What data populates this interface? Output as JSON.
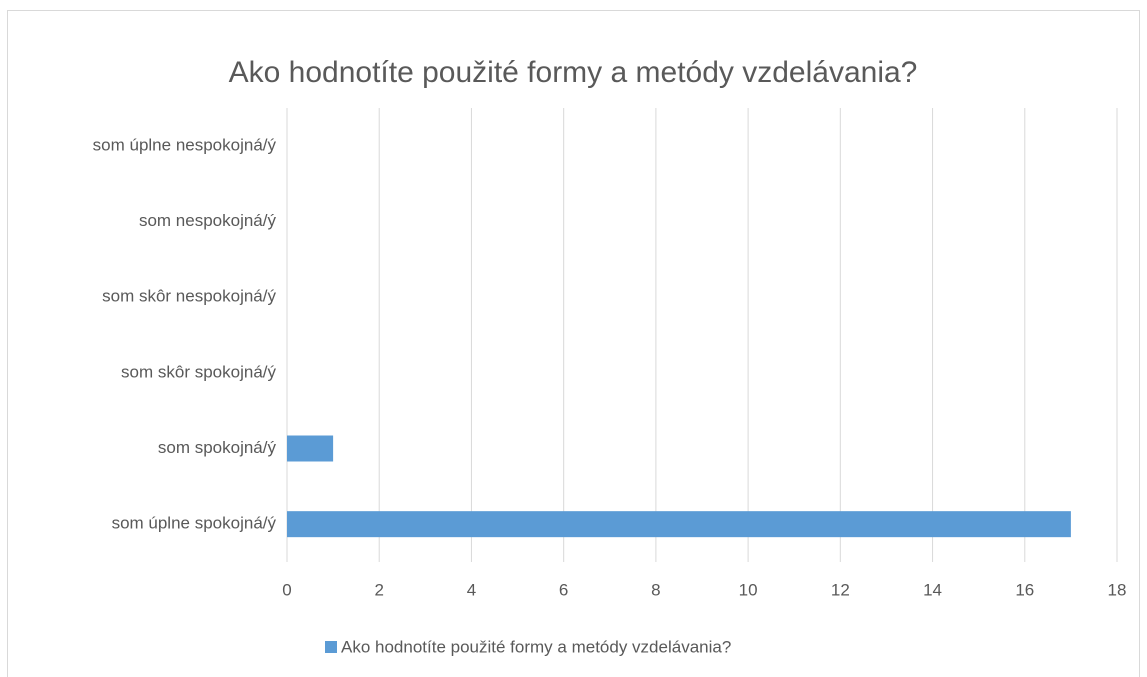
{
  "chart_data": {
    "type": "bar",
    "orientation": "horizontal",
    "title": "Ako hodnotíte použité formy a metódy vzdelávania?",
    "categories": [
      "som úplne nespokojná/ý",
      "som nespokojná/ý",
      "som skôr nespokojná/ý",
      "som skôr spokojná/ý",
      "som spokojná/ý",
      "som úplne spokojná/ý"
    ],
    "series": [
      {
        "name": "Ako hodnotíte použité formy a metódy vzdelávania?",
        "color": "#5b9bd5",
        "values": [
          0,
          0,
          0,
          0,
          1,
          17
        ]
      }
    ],
    "xlim": [
      0,
      18
    ],
    "xticks": [
      0,
      2,
      4,
      6,
      8,
      10,
      12,
      14,
      16,
      18
    ],
    "grid": true,
    "legend": "bottom"
  }
}
